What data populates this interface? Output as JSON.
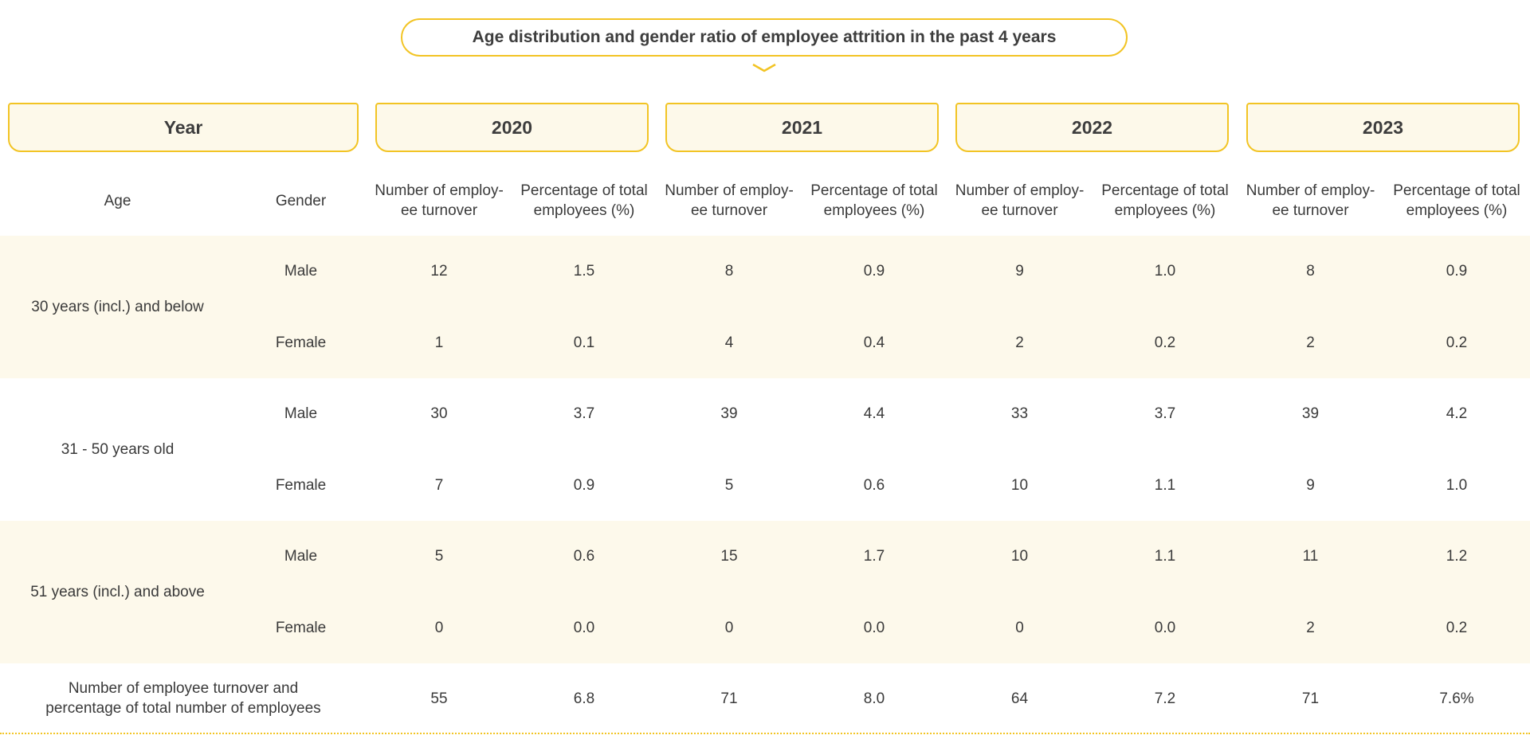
{
  "title": "Age distribution and gender ratio of employee attrition in the past 4 years",
  "header": {
    "year_label": "Year",
    "years": [
      "2020",
      "2021",
      "2022",
      "2023"
    ],
    "age_label": "Age",
    "gender_label": "Gender",
    "count_line1": "Number of employ-",
    "count_line2": "ee turnover",
    "pct_line1": "Percentage of total",
    "pct_line2": "employees (%)"
  },
  "groups": [
    {
      "age": "30 years (incl.) and below",
      "rows": [
        {
          "gender": "Male",
          "values": [
            "12",
            "1.5",
            "8",
            "0.9",
            "9",
            "1.0",
            "8",
            "0.9"
          ]
        },
        {
          "gender": "Female",
          "values": [
            "1",
            "0.1",
            "4",
            "0.4",
            "2",
            "0.2",
            "2",
            "0.2"
          ]
        }
      ]
    },
    {
      "age": "31 - 50 years old",
      "rows": [
        {
          "gender": "Male",
          "values": [
            "30",
            "3.7",
            "39",
            "4.4",
            "33",
            "3.7",
            "39",
            "4.2"
          ]
        },
        {
          "gender": "Female",
          "values": [
            "7",
            "0.9",
            "5",
            "0.6",
            "10",
            "1.1",
            "9",
            "1.0"
          ]
        }
      ]
    },
    {
      "age": "51 years (incl.) and above",
      "rows": [
        {
          "gender": "Male",
          "values": [
            "5",
            "0.6",
            "15",
            "1.7",
            "10",
            "1.1",
            "11",
            "1.2"
          ]
        },
        {
          "gender": "Female",
          "values": [
            "0",
            "0.0",
            "0",
            "0.0",
            "0",
            "0.0",
            "2",
            "0.2"
          ]
        }
      ]
    }
  ],
  "total": {
    "label_line1": "Number of employee turnover and",
    "label_line2": "percentage of total number of employees",
    "values": [
      "55",
      "6.8",
      "71",
      "8.0",
      "64",
      "7.2",
      "71",
      "7.6%"
    ]
  },
  "colors": {
    "accent": "#f2c424",
    "band": "#fdf9eb",
    "text": "#3a3a3a"
  }
}
